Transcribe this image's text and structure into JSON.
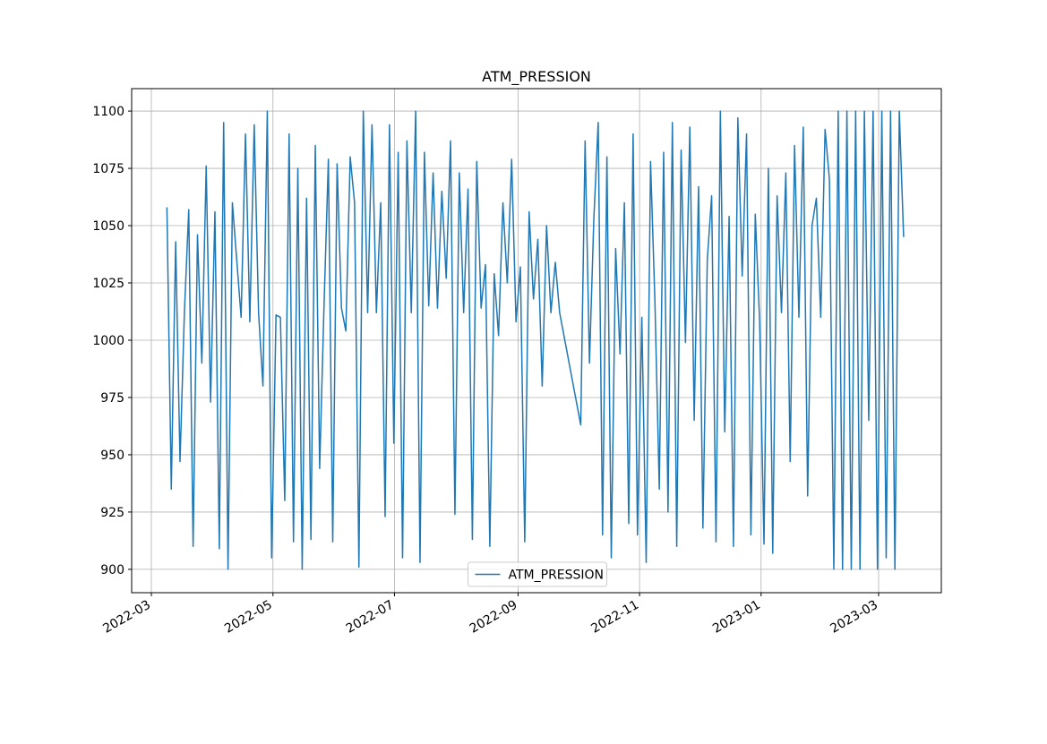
{
  "chart_data": {
    "type": "line",
    "title": "ATM_PRESSION",
    "x": [
      2022.183,
      2022.189,
      2022.195,
      2022.201,
      2022.207,
      2022.213,
      2022.219,
      2022.225,
      2022.231,
      2022.237,
      2022.243,
      2022.249,
      2022.255,
      2022.261,
      2022.267,
      2022.273,
      2022.279,
      2022.285,
      2022.291,
      2022.297,
      2022.303,
      2022.309,
      2022.315,
      2022.321,
      2022.327,
      2022.333,
      2022.339,
      2022.345,
      2022.351,
      2022.357,
      2022.363,
      2022.369,
      2022.375,
      2022.381,
      2022.387,
      2022.393,
      2022.399,
      2022.405,
      2022.411,
      2022.417,
      2022.423,
      2022.429,
      2022.435,
      2022.441,
      2022.447,
      2022.453,
      2022.459,
      2022.465,
      2022.471,
      2022.477,
      2022.483,
      2022.489,
      2022.495,
      2022.501,
      2022.507,
      2022.513,
      2022.519,
      2022.525,
      2022.531,
      2022.537,
      2022.543,
      2022.549,
      2022.555,
      2022.561,
      2022.567,
      2022.573,
      2022.579,
      2022.585,
      2022.591,
      2022.597,
      2022.603,
      2022.609,
      2022.615,
      2022.621,
      2022.627,
      2022.633,
      2022.639,
      2022.645,
      2022.651,
      2022.657,
      2022.663,
      2022.669,
      2022.675,
      2022.681,
      2022.687,
      2022.693,
      2022.699,
      2022.705,
      2022.711,
      2022.717,
      2022.723,
      2022.752,
      2022.758,
      2022.764,
      2022.77,
      2022.776,
      2022.782,
      2022.788,
      2022.794,
      2022.8,
      2022.806,
      2022.812,
      2022.818,
      2022.824,
      2022.83,
      2022.836,
      2022.842,
      2022.848,
      2022.854,
      2022.86,
      2022.866,
      2022.872,
      2022.878,
      2022.884,
      2022.89,
      2022.896,
      2022.902,
      2022.908,
      2022.914,
      2022.92,
      2022.926,
      2022.932,
      2022.938,
      2022.944,
      2022.95,
      2022.956,
      2022.962,
      2022.968,
      2022.974,
      2022.98,
      2022.986,
      2022.992,
      2022.998,
      2023.004,
      2023.01,
      2023.016,
      2023.022,
      2023.028,
      2023.034,
      2023.04,
      2023.046,
      2023.052,
      2023.058,
      2023.064,
      2023.07,
      2023.076,
      2023.082,
      2023.088,
      2023.094,
      2023.1,
      2023.106,
      2023.112,
      2023.118,
      2023.124,
      2023.13,
      2023.136,
      2023.142,
      2023.148,
      2023.154,
      2023.16,
      2023.166,
      2023.172,
      2023.178,
      2023.184,
      2023.19,
      2023.196
    ],
    "series": [
      {
        "name": "ATM_PRESSION",
        "color": "#1f77b4",
        "values": [
          1058,
          935,
          1043,
          947,
          1012,
          1057,
          910,
          1046,
          990,
          1076,
          973,
          1056,
          909,
          1095,
          900,
          1060,
          1035,
          1010,
          1090,
          1008,
          1094,
          1012,
          980,
          1100,
          905,
          1011,
          1010,
          930,
          1090,
          912,
          1075,
          900,
          1062,
          913,
          1085,
          944,
          1015,
          1079,
          912,
          1077,
          1014,
          1004,
          1080,
          1060,
          901,
          1100,
          1012,
          1094,
          1012,
          1060,
          923,
          1094,
          955,
          1082,
          905,
          1087,
          1012,
          1100,
          903,
          1082,
          1015,
          1073,
          1014,
          1065,
          1027,
          1087,
          924,
          1073,
          1012,
          1066,
          913,
          1078,
          1014,
          1033,
          910,
          1029,
          1002,
          1060,
          1025,
          1079,
          1008,
          1032,
          912,
          1056,
          1018,
          1044,
          980,
          1050,
          1012,
          1034,
          1012,
          963,
          1087,
          990,
          1053,
          1095,
          915,
          1080,
          905,
          1040,
          994,
          1060,
          920,
          1090,
          915,
          1010,
          903,
          1078,
          1017,
          935,
          1082,
          925,
          1095,
          910,
          1083,
          999,
          1093,
          965,
          1067,
          918,
          1035,
          1063,
          912,
          1100,
          960,
          1054,
          910,
          1097,
          1028,
          1090,
          915,
          1055,
          1008,
          911,
          1075,
          907,
          1063,
          1012,
          1073,
          947,
          1085,
          1010,
          1093,
          932,
          1050,
          1062,
          1010,
          1092,
          1070,
          900,
          1100,
          900,
          1100,
          900,
          1100,
          900,
          1100,
          965,
          1100,
          900,
          1100,
          905,
          1100,
          900,
          1100,
          1045
        ]
      }
    ],
    "xlim": [
      2022.1345,
      2023.2478
    ],
    "xticks": [
      {
        "value": 2022.1616,
        "label": "2022-03"
      },
      {
        "value": 2022.3288,
        "label": "2022-05"
      },
      {
        "value": 2022.4959,
        "label": "2022-07"
      },
      {
        "value": 2022.6658,
        "label": "2022-09"
      },
      {
        "value": 2022.8329,
        "label": "2022-11"
      },
      {
        "value": 2023.0,
        "label": "2023-01"
      },
      {
        "value": 2023.1616,
        "label": "2023-03"
      }
    ],
    "ylim": [
      889.8,
      1109.8
    ],
    "yticks": [
      900,
      925,
      950,
      975,
      1000,
      1025,
      1050,
      1075,
      1100
    ],
    "grid": true,
    "legend": "lower center"
  }
}
